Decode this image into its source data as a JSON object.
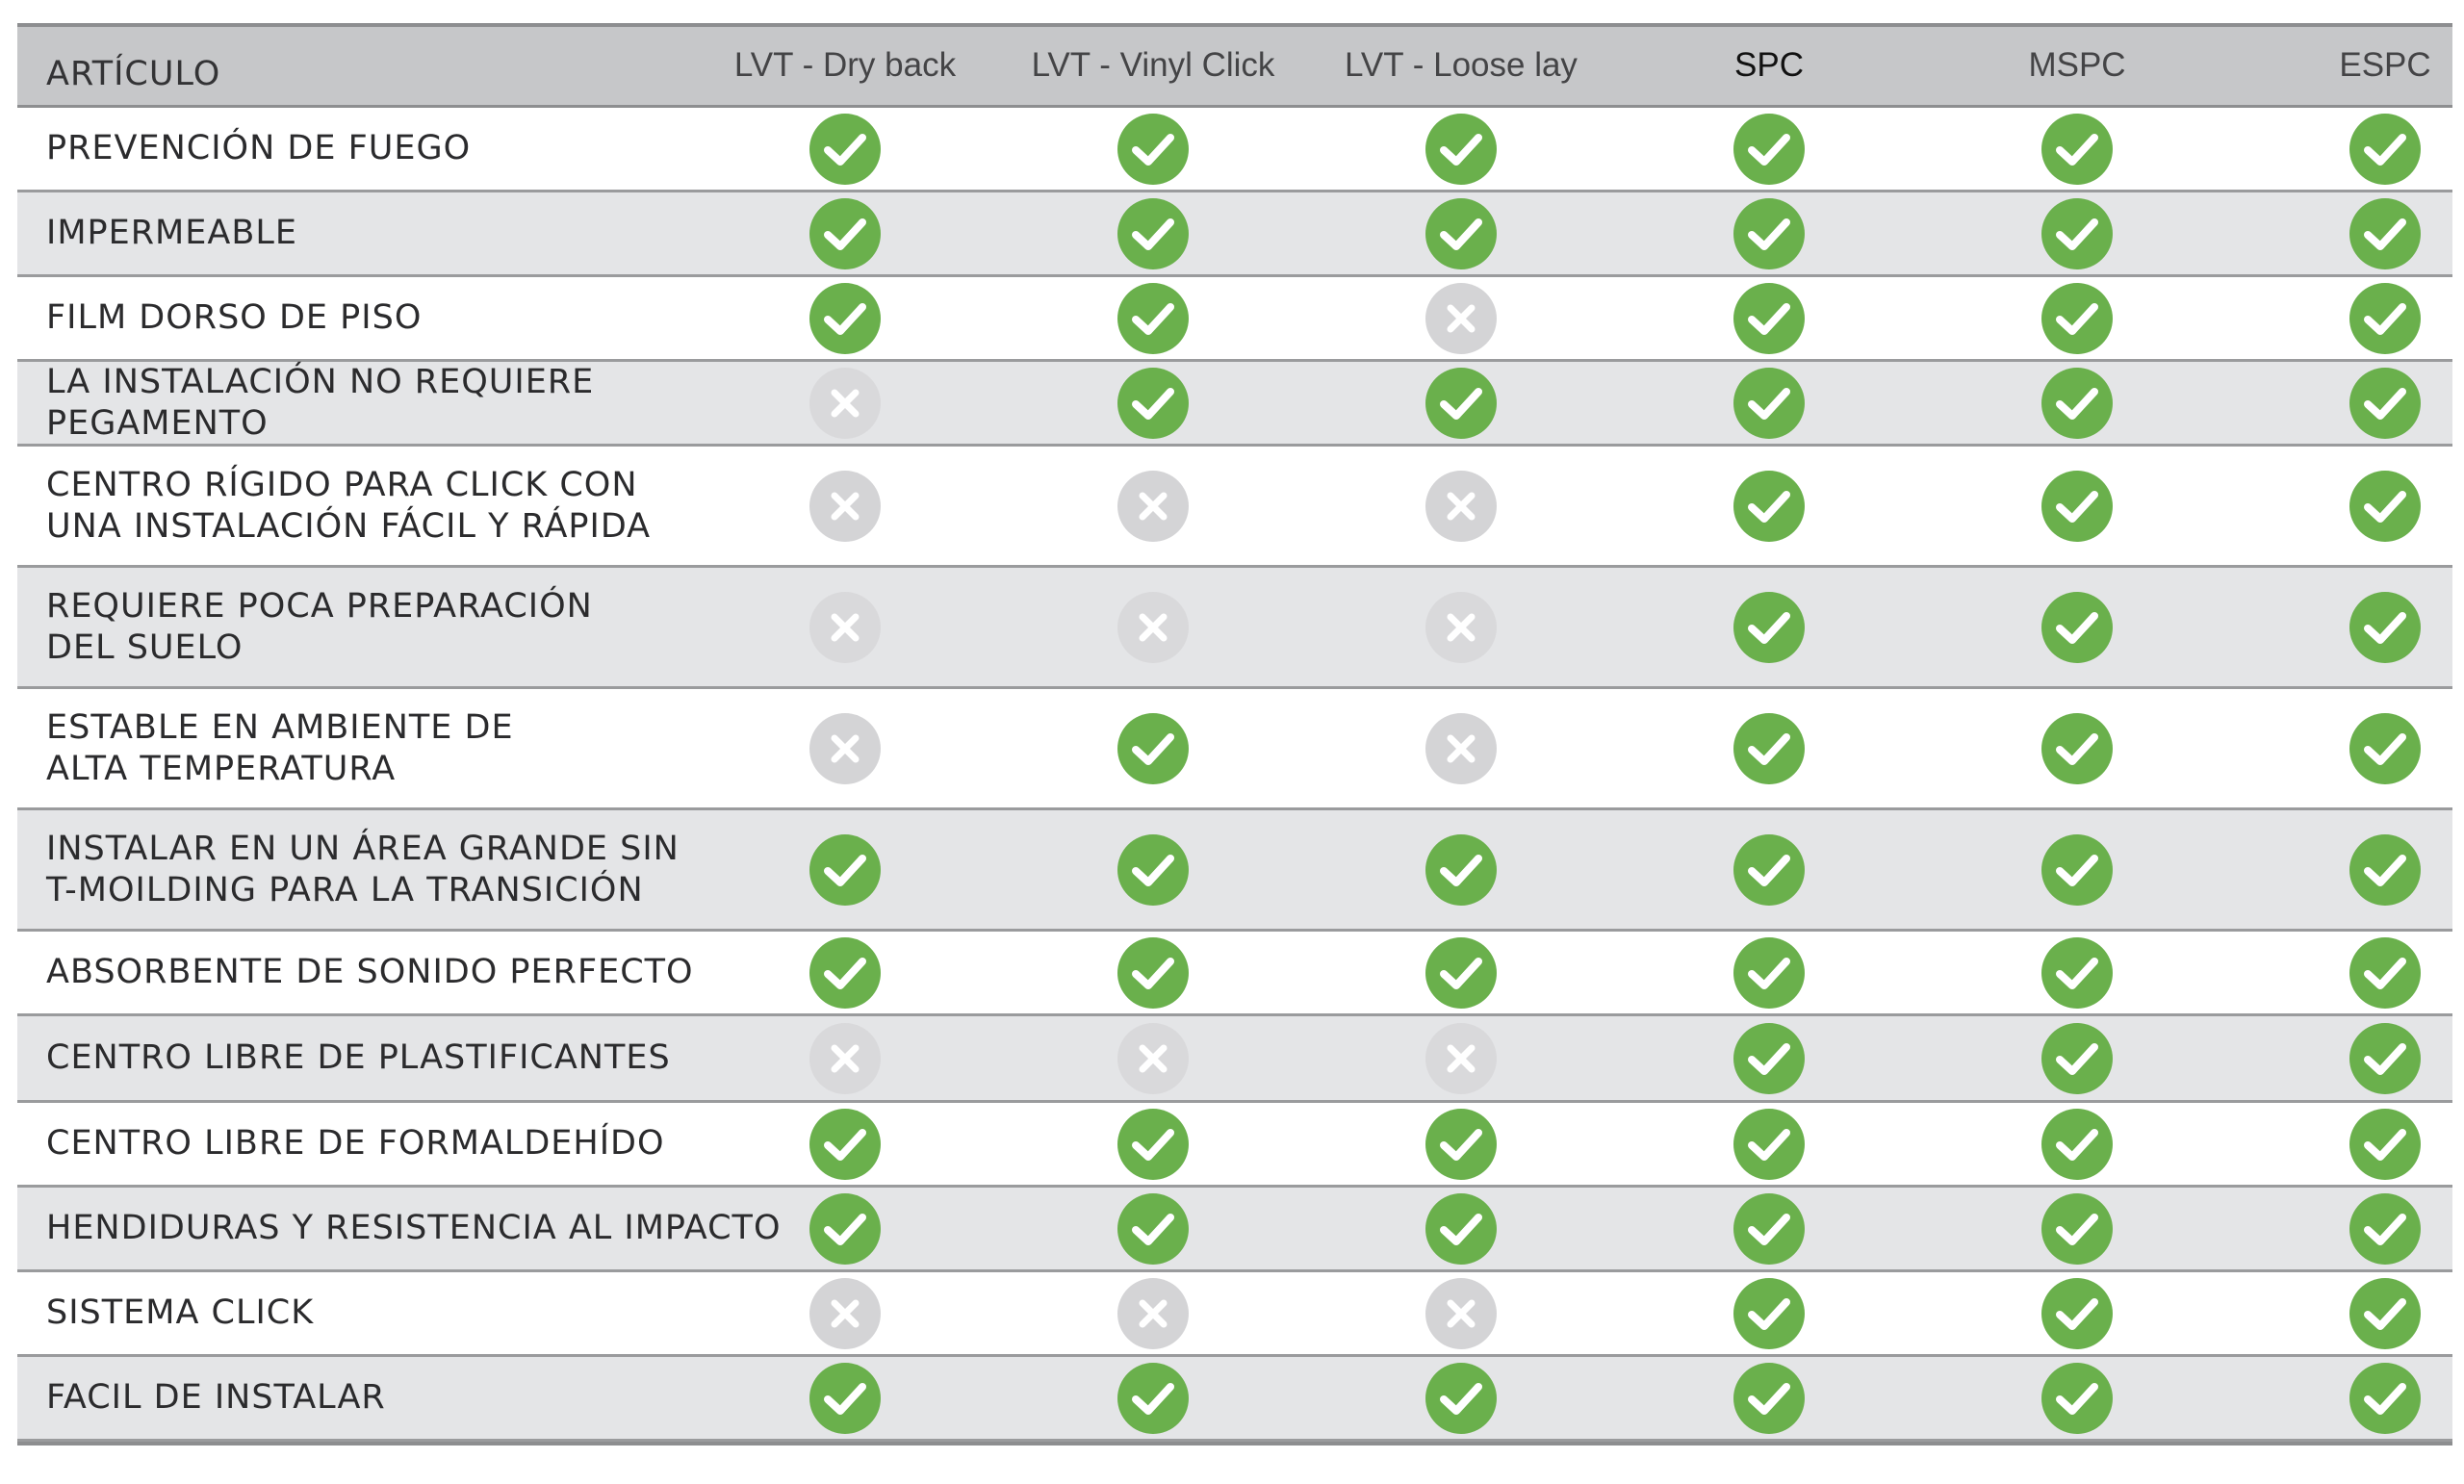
{
  "header": {
    "item_label": "ARTÍCULO",
    "columns": [
      "LVT - Dry back",
      "LVT - Vinyl Click",
      "LVT - Loose lay",
      "SPC",
      "MSPC",
      "ESPC"
    ]
  },
  "colors": {
    "yes": "#6ab04c",
    "no": "#d4d4d6",
    "header_bg": "#c6c7c9",
    "alt_row_bg": "#e4e5e7"
  },
  "icons": {
    "yes": "check-circle-icon",
    "no": "x-circle-icon"
  },
  "rows": [
    {
      "label": "PREVENCIÓN DE FUEGO",
      "values": [
        true,
        true,
        true,
        true,
        true,
        true
      ]
    },
    {
      "label": "IMPERMEABLE",
      "values": [
        true,
        true,
        true,
        true,
        true,
        true
      ]
    },
    {
      "label": "FILM DORSO DE PISO",
      "values": [
        true,
        true,
        false,
        true,
        true,
        true
      ]
    },
    {
      "label": "LA INSTALACIÓN NO REQUIERE\nPEGAMENTO",
      "values": [
        false,
        true,
        true,
        true,
        true,
        true
      ]
    },
    {
      "label": "CENTRO RÍGIDO PARA CLICK CON\nUNA INSTALACIÓN FÁCIL Y RÁPIDA",
      "values": [
        false,
        false,
        false,
        true,
        true,
        true
      ]
    },
    {
      "label": "REQUIERE POCA PREPARACIÓN\nDEL SUELO",
      "values": [
        false,
        false,
        false,
        true,
        true,
        true
      ]
    },
    {
      "label": "ESTABLE EN AMBIENTE DE\nALTA TEMPERATURA",
      "values": [
        false,
        true,
        false,
        true,
        true,
        true
      ]
    },
    {
      "label": "INSTALAR EN UN ÁREA GRANDE SIN\nT-MOILDING PARA LA TRANSICIÓN",
      "values": [
        true,
        true,
        true,
        true,
        true,
        true
      ]
    },
    {
      "label": "ABSORBENTE DE SONIDO PERFECTO",
      "values": [
        true,
        true,
        true,
        true,
        true,
        true
      ]
    },
    {
      "label": "CENTRO LIBRE DE PLASTIFICANTES",
      "values": [
        false,
        false,
        false,
        true,
        true,
        true
      ]
    },
    {
      "label": "CENTRO LIBRE DE FORMALDEHÍDO",
      "values": [
        true,
        true,
        true,
        true,
        true,
        true
      ]
    },
    {
      "label": "HENDIDURAS Y RESISTENCIA AL IMPACTO",
      "values": [
        true,
        true,
        true,
        true,
        true,
        true
      ]
    },
    {
      "label": "SISTEMA CLICK",
      "values": [
        false,
        false,
        false,
        true,
        true,
        true
      ]
    },
    {
      "label": "FACIL DE INSTALAR",
      "values": [
        true,
        true,
        true,
        true,
        true,
        true
      ]
    }
  ]
}
